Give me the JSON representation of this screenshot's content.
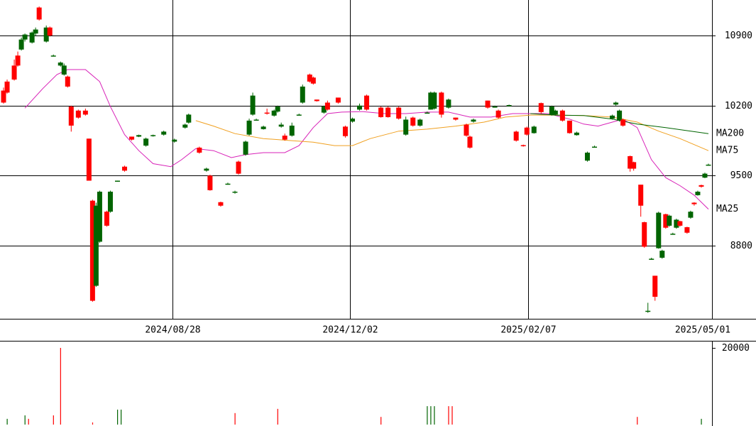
{
  "chart_data": [
    {
      "type": "candlestick",
      "xlim": [
        0,
        200
      ],
      "xticks": [
        {
          "value": 49,
          "label": "2024/08/28"
        },
        {
          "value": 99,
          "label": "2024/12/02"
        },
        {
          "value": 149,
          "label": "2025/02/07"
        },
        {
          "value": 199,
          "label": "2025/05/01"
        }
      ],
      "ylim": [
        8070,
        11255
      ],
      "yticks": [
        8800,
        9500,
        10200,
        10900
      ],
      "grid": true,
      "up_color": "#ff0000",
      "down_color": "#006400",
      "candles": {
        "x": [
          1,
          2,
          4,
          5,
          6,
          7,
          9,
          10,
          11,
          13,
          14,
          15,
          17,
          18,
          19,
          20,
          22,
          24,
          25,
          26,
          27,
          28,
          30,
          31,
          33,
          35,
          37,
          39,
          41,
          43,
          46,
          49,
          52,
          53,
          56,
          58,
          59,
          62,
          64,
          66,
          67,
          69,
          70,
          71,
          72,
          74,
          75,
          77,
          78,
          79,
          80,
          82,
          84,
          85,
          87,
          88,
          89,
          91,
          92,
          95,
          97,
          99,
          101,
          103,
          107,
          109,
          112,
          114,
          116,
          118,
          120,
          121,
          122,
          124,
          126,
          128,
          131,
          132,
          133,
          137,
          139,
          140,
          143,
          145,
          147,
          148,
          150,
          152,
          155,
          156,
          158,
          160,
          162,
          165,
          167,
          172,
          173,
          174,
          175,
          177,
          178,
          180,
          181,
          182,
          183,
          184,
          185,
          186,
          187,
          188,
          189,
          190,
          191,
          193,
          194,
          195,
          196,
          197,
          198,
          199
        ],
        "open": [
          10230,
          10330,
          10460,
          10600,
          10860,
          10910,
          10930,
          10960,
          11060,
          10980,
          10900,
          10700,
          10630,
          10600,
          10390,
          10000,
          10080,
          10110,
          9450,
          8250,
          9200,
          9340,
          9000,
          9340,
          9450,
          9550,
          9860,
          9905,
          9870,
          9905,
          9940,
          9860,
          10010,
          10110,
          9730,
          9570,
          9355,
          9200,
          9420,
          9340,
          9520,
          9840,
          10050,
          10300,
          10060,
          9990,
          10120,
          10150,
          10190,
          10010,
          9860,
          10000,
          10110,
          10390,
          10440,
          10420,
          10245,
          10190,
          10160,
          10230,
          9895,
          10070,
          10200,
          10160,
          10085,
          10085,
          10070,
          10060,
          10000,
          10060,
          10130,
          10330,
          10330,
          10110,
          10260,
          10060,
          9900,
          9780,
          10060,
          10180,
          10190,
          10080,
          10205,
          9850,
          9800,
          9910,
          9990,
          10135,
          10190,
          10150,
          10050,
          9925,
          9930,
          9730,
          9790,
          10100,
          10230,
          10150,
          10000,
          9570,
          9570,
          9200,
          8790,
          8150,
          8670,
          8290,
          9130,
          8750,
          8980,
          9100,
          8920,
          9060,
          9000,
          8930,
          9140,
          9215,
          9340,
          9390,
          9520,
          9610
        ],
        "high": [
          10380,
          10460,
          10660,
          10740,
          10880,
          10920,
          10940,
          10980,
          11190,
          11000,
          10990,
          10710,
          10640,
          10620,
          10500,
          10200,
          10160,
          10170,
          9870,
          9260,
          9230,
          9350,
          9150,
          9350,
          9450,
          9600,
          9890,
          9910,
          9880,
          9910,
          9950,
          9870,
          10020,
          10120,
          9790,
          9580,
          9510,
          9240,
          9430,
          9350,
          9650,
          9850,
          10070,
          10330,
          10070,
          10000,
          10170,
          10160,
          10200,
          10030,
          9920,
          10030,
          10120,
          10410,
          10520,
          10490,
          10260,
          10200,
          10250,
          10280,
          10000,
          10080,
          10220,
          10310,
          10190,
          10190,
          10190,
          10090,
          10090,
          10070,
          10140,
          10340,
          10340,
          10340,
          10270,
          10080,
          10020,
          9900,
          10070,
          10250,
          10200,
          10160,
          10210,
          9950,
          9810,
          9990,
          10000,
          10230,
          10200,
          10160,
          10160,
          10050,
          9940,
          9740,
          9800,
          10110,
          10240,
          10160,
          10070,
          9700,
          9640,
          9410,
          9040,
          8230,
          8680,
          8500,
          9140,
          8760,
          9120,
          9110,
          8930,
          9070,
          9050,
          8990,
          9150,
          9235,
          9350,
          9410,
          9530,
          9620
        ],
        "low": [
          10220,
          10320,
          10450,
          10590,
          10750,
          10840,
          10820,
          10900,
          11050,
          10830,
          10890,
          10690,
          10590,
          10500,
          10380,
          9940,
          10070,
          10100,
          9450,
          8240,
          8390,
          8830,
          8990,
          9130,
          9440,
          9540,
          9850,
          9885,
          9790,
          9890,
          9900,
          9830,
          9970,
          10020,
          9720,
          9540,
          9350,
          9190,
          9410,
          9320,
          9510,
          9700,
          9900,
          10100,
          10050,
          9960,
          10110,
          10090,
          10130,
          9980,
          9850,
          9890,
          10100,
          10220,
          10430,
          10410,
          10240,
          10120,
          10150,
          10220,
          9880,
          10030,
          10150,
          10150,
          10080,
          10080,
          10060,
          9900,
          9990,
          9990,
          10120,
          10160,
          10160,
          10080,
          10170,
          10050,
          9890,
          9770,
          10030,
          10170,
          10180,
          10070,
          10195,
          9840,
          9790,
          9900,
          9920,
          10120,
          10100,
          10100,
          10040,
          9920,
          9900,
          9640,
          9780,
          10060,
          10200,
          10040,
          9990,
          9540,
          9550,
          9090,
          8780,
          8130,
          8660,
          8250,
          8770,
          8670,
          8970,
          8990,
          8910,
          8970,
          8990,
          8920,
          9070,
          9200,
          9300,
          9380,
          9475,
          9600
        ],
        "close": [
          10350,
          10440,
          10600,
          10700,
          10760,
          10860,
          10830,
          10920,
          11180,
          10840,
          10980,
          10695,
          10600,
          10510,
          10490,
          10190,
          10150,
          10150,
          9870,
          9250,
          8400,
          8840,
          9140,
          9140,
          9440,
          9590,
          9890,
          9890,
          9800,
          9895,
          9910,
          9840,
          9980,
          10030,
          9780,
          9550,
          9500,
          9235,
          9415,
          9330,
          9640,
          9710,
          9910,
          10110,
          10055,
          9965,
          10130,
          10100,
          10140,
          9990,
          9900,
          9900,
          10105,
          10230,
          10510,
          10480,
          10260,
          10130,
          10230,
          10280,
          9990,
          10040,
          10160,
          10300,
          10180,
          10180,
          10180,
          9910,
          10080,
          10000,
          10125,
          10160,
          10170,
          10330,
          10180,
          10080,
          10010,
          9890,
          10040,
          10250,
          10185,
          10150,
          10200,
          9940,
          9805,
          9980,
          9925,
          10225,
          10110,
          10110,
          10150,
          10050,
          9905,
          9650,
          9785,
          10070,
          10210,
          10050,
          10060,
          9695,
          9635,
          9410,
          9035,
          8140,
          8665,
          8500,
          8775,
          8680,
          9115,
          9000,
          8915,
          8980,
          9045,
          8985,
          9080,
          9230,
          9305,
          9405,
          9480,
          9605
        ]
      },
      "series": [
        {
          "name": "MA25",
          "color": "#d822b8",
          "x": [
            7,
            12,
            16,
            19,
            24,
            28,
            31,
            35,
            39,
            43,
            48,
            51,
            55,
            60,
            65,
            69,
            74,
            80,
            84,
            88,
            92,
            96,
            102,
            108,
            114,
            120,
            126,
            132,
            138,
            144,
            149,
            154,
            160,
            164,
            168,
            172,
            175,
            179,
            183,
            187,
            191,
            195,
            199
          ],
          "values": [
            10175,
            10370,
            10510,
            10560,
            10560,
            10440,
            10190,
            9910,
            9750,
            9620,
            9590,
            9660,
            9770,
            9750,
            9680,
            9710,
            9730,
            9730,
            9800,
            9980,
            10120,
            10135,
            10140,
            10120,
            10120,
            10135,
            10135,
            10085,
            10085,
            10120,
            10120,
            10120,
            10065,
            10015,
            9995,
            10035,
            10065,
            9980,
            9660,
            9480,
            9400,
            9305,
            9165
          ]
        },
        {
          "name": "MA75",
          "color": "#f0a020",
          "x": [
            55,
            60,
            66,
            74,
            82,
            88,
            94,
            99,
            104,
            112,
            120,
            128,
            136,
            142,
            149,
            156,
            164,
            172,
            179,
            185,
            191,
            199
          ],
          "values": [
            10050,
            9995,
            9920,
            9870,
            9850,
            9835,
            9800,
            9800,
            9870,
            9945,
            9965,
            9995,
            10035,
            10085,
            10105,
            10105,
            10100,
            10085,
            10035,
            9945,
            9870,
            9750
          ]
        },
        {
          "name": "MA200",
          "color": "#006400",
          "x": [
            149,
            156,
            164,
            172,
            179,
            187,
            199
          ],
          "values": [
            10120,
            10105,
            10100,
            10065,
            10015,
            9980,
            9920
          ]
        }
      ]
    },
    {
      "type": "bar",
      "xlim": [
        0,
        200
      ],
      "ylim": [
        0,
        21850
      ],
      "yticks": [
        20000
      ],
      "x": [
        2,
        7,
        8,
        15,
        17,
        26,
        33,
        34,
        66,
        78,
        107,
        120,
        121,
        122,
        126,
        127,
        179,
        197
      ],
      "values": [
        1500,
        2400,
        1500,
        2400,
        20000,
        550,
        3900,
        3900,
        3000,
        4100,
        2000,
        4800,
        4800,
        4800,
        4800,
        4800,
        2000,
        1500
      ],
      "colors": [
        "#006400",
        "#006400",
        "#ff0000",
        "#ff0000",
        "#ff0000",
        "#ff0000",
        "#006400",
        "#006400",
        "#ff0000",
        "#ff0000",
        "#ff0000",
        "#006400",
        "#006400",
        "#006400",
        "#ff0000",
        "#ff0000",
        "#ff0000",
        "#006400"
      ]
    }
  ]
}
